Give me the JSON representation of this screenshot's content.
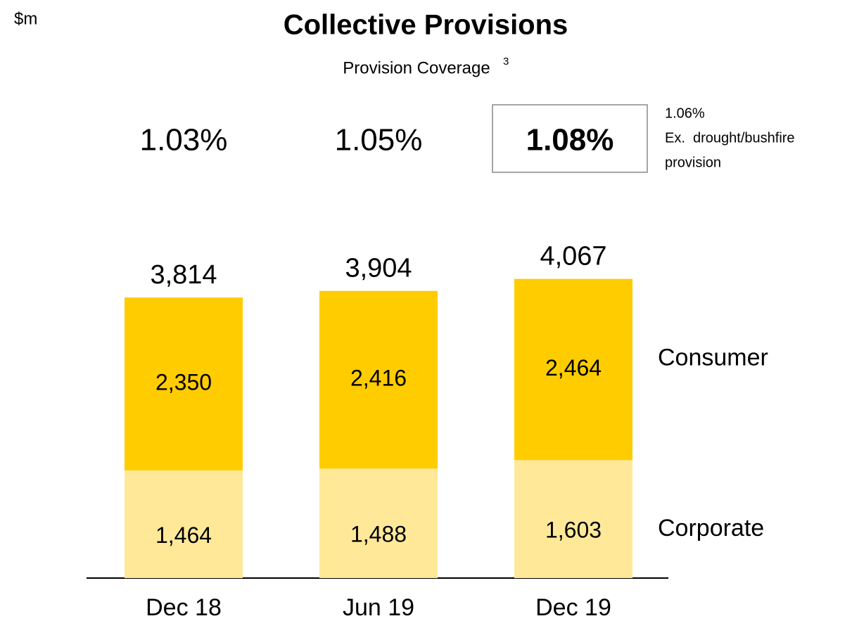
{
  "chart_data": {
    "type": "stacked_bar",
    "title": "Collective Provisions",
    "subtitle": "Provision Coverage",
    "subtitle_note": "3",
    "unit_label": "$m",
    "categories": [
      "Dec 18",
      "Jun 19",
      "Dec 19"
    ],
    "series": [
      {
        "name": "Corporate",
        "color": "#ffe999",
        "values": [
          1464,
          1488,
          1603
        ],
        "value_labels": [
          "1,464",
          "1,488",
          "1,603"
        ]
      },
      {
        "name": "Consumer",
        "color": "#ffcc00",
        "values": [
          2350,
          2416,
          2464
        ],
        "value_labels": [
          "2,350",
          "2,416",
          "2,464"
        ]
      }
    ],
    "totals": {
      "values": [
        3814,
        3904,
        4067
      ],
      "value_labels": [
        "3,814",
        "3,904",
        "4,067"
      ]
    },
    "coverage": {
      "values": [
        1.03,
        1.05,
        1.08
      ],
      "value_labels": [
        "1.03%",
        "1.05%",
        "1.08%"
      ],
      "highlight": 2
    },
    "annotation": [
      "1.06%",
      "Ex.  drought/bushfire",
      "provision"
    ]
  }
}
